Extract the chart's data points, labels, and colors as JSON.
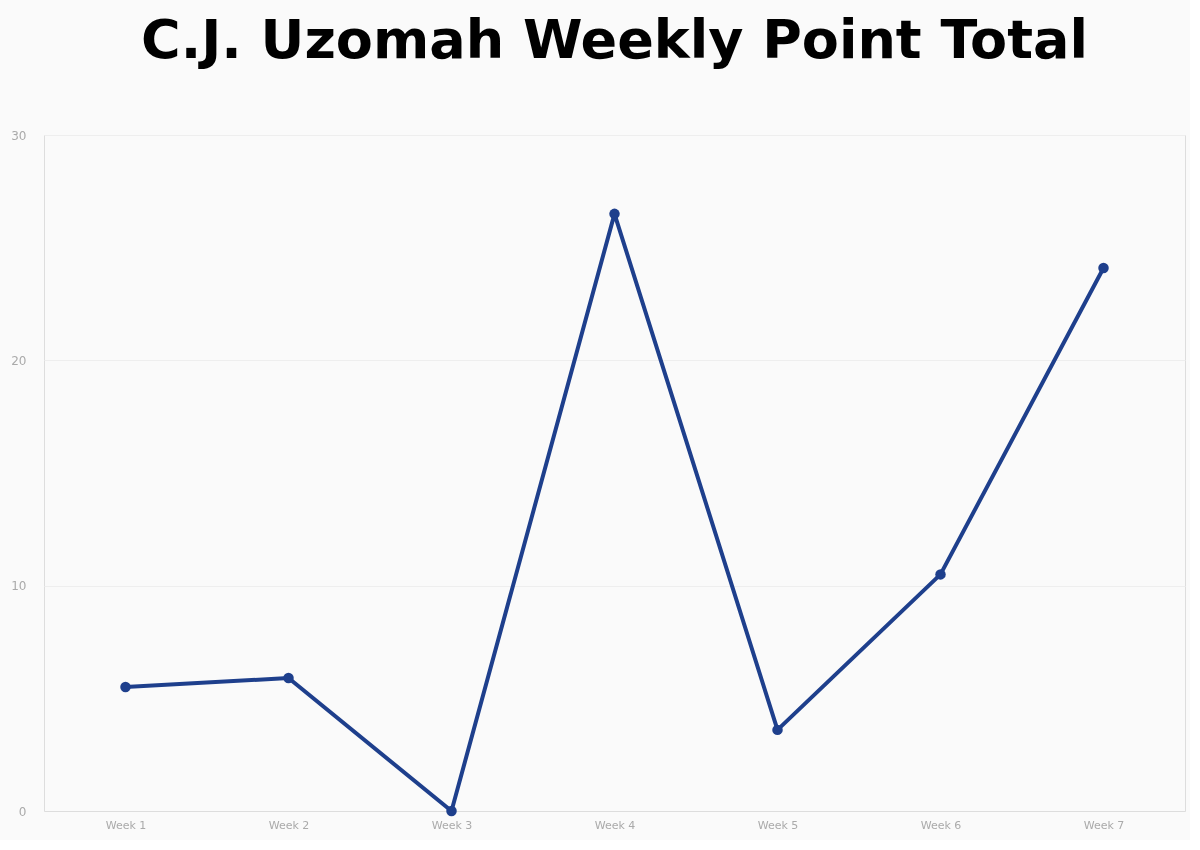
{
  "chart_data": {
    "type": "line",
    "title": "C.J. Uzomah Weekly Point Total",
    "categories": [
      "Week 1",
      "Week 2",
      "Week 3",
      "Week 4",
      "Week 5",
      "Week 6",
      "Week 7"
    ],
    "series": [
      {
        "color": "#1e3f8c",
        "values": [
          5.5,
          5.9,
          0,
          26.5,
          3.6,
          10.5,
          24.1
        ]
      }
    ],
    "ylim": [
      0,
      30
    ],
    "yticks": [
      0,
      10,
      20,
      30
    ],
    "grid": "y",
    "marker": "circle",
    "line_style": "solid",
    "legend": false
  }
}
